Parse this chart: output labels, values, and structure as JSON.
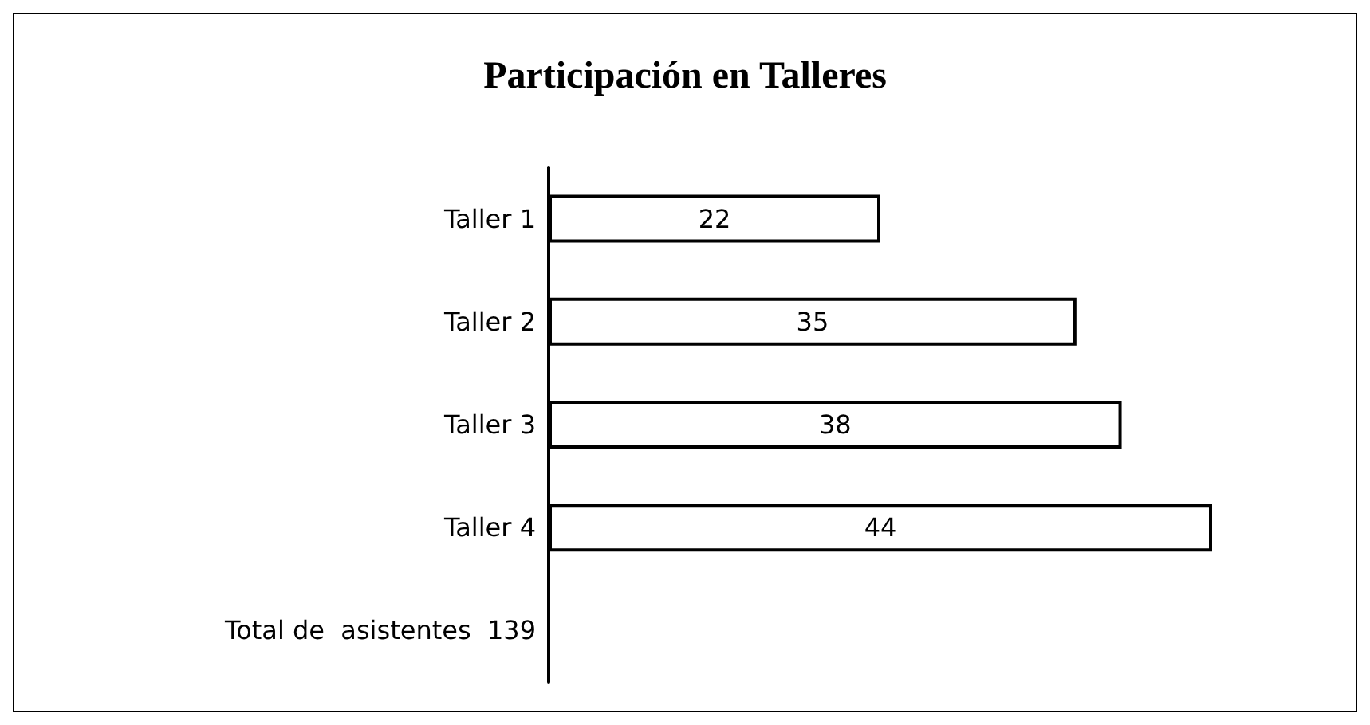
{
  "chart_data": {
    "type": "bar",
    "orientation": "horizontal",
    "title": "Participación en Talleres",
    "categories": [
      "Taller 1",
      "Taller 2",
      "Taller 3",
      "Taller 4",
      "Total de  asistentes  139"
    ],
    "values": [
      22,
      35,
      38,
      44,
      null
    ],
    "color": "#ffffff",
    "data_labels": true
  }
}
